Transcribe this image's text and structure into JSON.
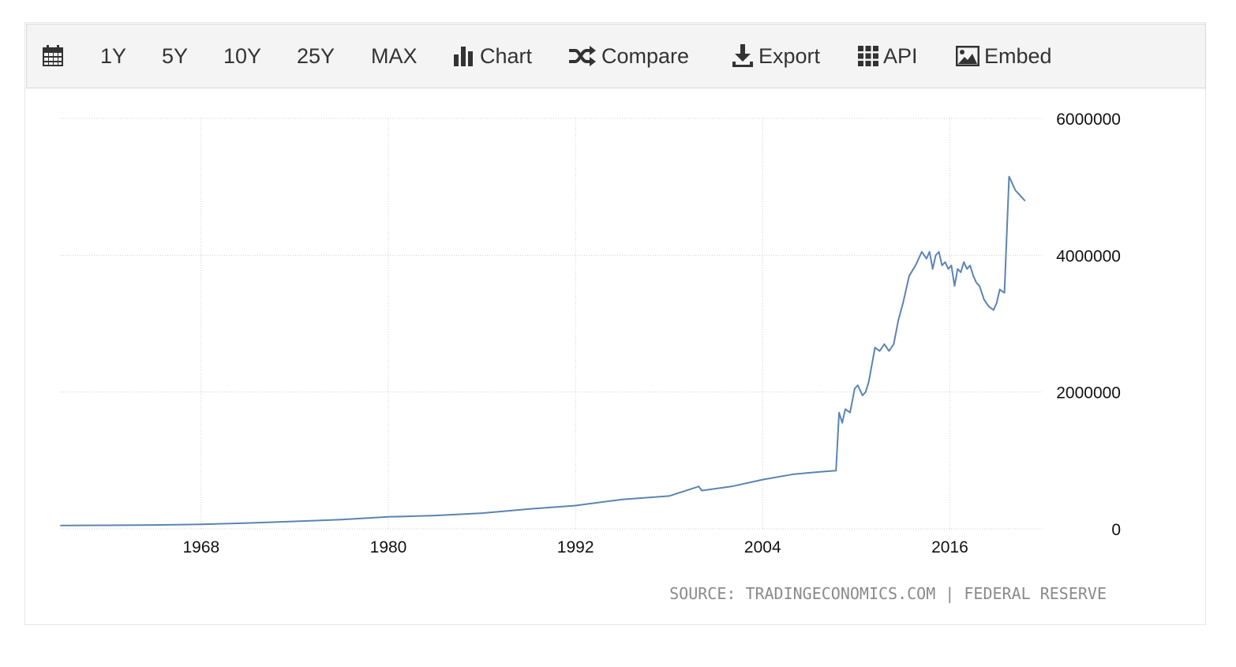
{
  "toolbar": {
    "calendar_icon": "calendar-icon",
    "range_1y": "1Y",
    "range_5y": "5Y",
    "range_10y": "10Y",
    "range_25y": "25Y",
    "range_max": "MAX",
    "chart_label": "Chart",
    "compare_label": "Compare",
    "export_label": "Export",
    "api_label": "API",
    "embed_label": "Embed"
  },
  "source": "SOURCE: TRADINGECONOMICS.COM | FEDERAL RESERVE",
  "colors": {
    "line": "#5b84b1",
    "grid": "#cfcfcf",
    "toolbar_bg": "#f4f4f4"
  },
  "chart_data": {
    "type": "line",
    "title": "",
    "xlabel": "",
    "ylabel": "",
    "xlim": [
      1959,
      2022
    ],
    "ylim": [
      0,
      6000000
    ],
    "x_ticks": [
      1968,
      1980,
      1992,
      2004,
      2016
    ],
    "y_ticks": [
      0,
      2000000,
      4000000,
      6000000
    ],
    "grid": true,
    "legend": "none",
    "series": [
      {
        "name": "",
        "x": [
          1959.0,
          1962.0,
          1965.0,
          1968.0,
          1971.0,
          1974.0,
          1977.0,
          1980.0,
          1983.0,
          1986.0,
          1989.0,
          1992.0,
          1995.0,
          1998.0,
          1999.9,
          2000.1,
          2002.0,
          2004.0,
          2006.0,
          2008.0,
          2008.7,
          2008.9,
          2009.1,
          2009.3,
          2009.6,
          2009.9,
          2010.1,
          2010.4,
          2010.6,
          2010.8,
          2011.2,
          2011.5,
          2011.8,
          2012.1,
          2012.4,
          2012.7,
          2013.0,
          2013.4,
          2013.8,
          2014.2,
          2014.5,
          2014.7,
          2014.9,
          2015.1,
          2015.3,
          2015.5,
          2015.7,
          2015.9,
          2016.1,
          2016.3,
          2016.5,
          2016.7,
          2016.9,
          2017.1,
          2017.3,
          2017.5,
          2017.7,
          2017.9,
          2018.2,
          2018.5,
          2018.8,
          2019.0,
          2019.2,
          2019.5,
          2019.8,
          2020.0,
          2020.2,
          2020.4,
          2020.6,
          2020.8
        ],
        "values": [
          50000,
          52000,
          57000,
          67000,
          85000,
          110000,
          135000,
          175000,
          195000,
          230000,
          290000,
          340000,
          430000,
          480000,
          620000,
          560000,
          620000,
          720000,
          800000,
          840000,
          850000,
          1700000,
          1550000,
          1750000,
          1700000,
          2050000,
          2100000,
          1950000,
          2000000,
          2150000,
          2650000,
          2600000,
          2700000,
          2600000,
          2700000,
          3050000,
          3300000,
          3700000,
          3850000,
          4050000,
          3950000,
          4050000,
          3800000,
          4000000,
          4050000,
          3850000,
          3900000,
          3800000,
          3850000,
          3550000,
          3800000,
          3750000,
          3900000,
          3800000,
          3850000,
          3700000,
          3600000,
          3550000,
          3350000,
          3250000,
          3200000,
          3300000,
          3500000,
          3450000,
          5150000,
          5050000,
          4950000,
          4900000,
          4850000,
          4800000
        ]
      }
    ]
  }
}
